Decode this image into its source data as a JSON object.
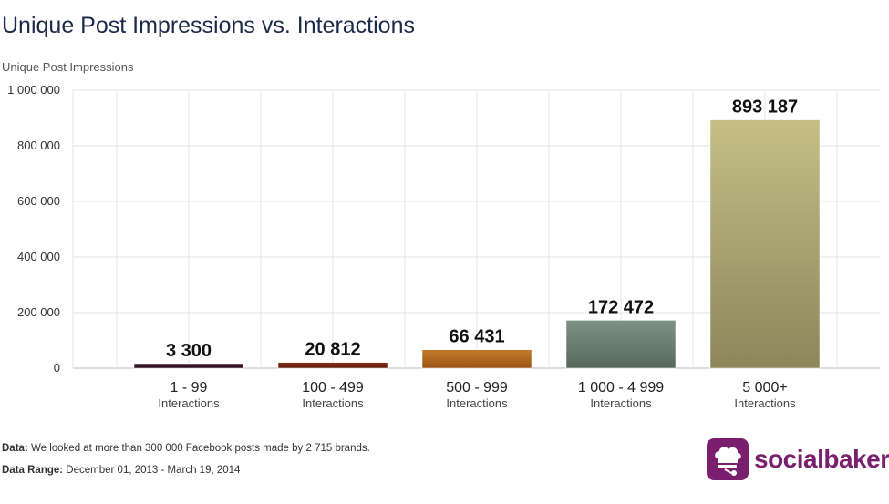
{
  "title": "Unique Post Impressions vs. Interactions",
  "ylabel": "Unique Post Impressions",
  "footer": {
    "data_label": "Data:",
    "data_text": " We looked at more than 300 000 Facebook posts made by 2 715 brands.",
    "range_label": "Data Range:",
    "range_text": " December 01, 2013 - March 19, 2014"
  },
  "logo": {
    "text": "socialbakers",
    "color": "#7a1f6e"
  },
  "chart_data": {
    "type": "bar",
    "title": "Unique Post Impressions vs. Interactions",
    "ylabel": "Unique Post Impressions",
    "xlabel": "",
    "ylim": [
      0,
      1000000
    ],
    "yticks": [
      "0",
      "200 000",
      "400 000",
      "600 000",
      "800 000",
      "1 000 000"
    ],
    "ytick_values": [
      0,
      200000,
      400000,
      600000,
      800000,
      1000000
    ],
    "grid": true,
    "categories": [
      "1 - 99",
      "100 - 499",
      "500 - 999",
      "1 000 - 4 999",
      "5 000+"
    ],
    "category_sublabel": "Interactions",
    "values": [
      3300,
      20812,
      66431,
      172472,
      893187
    ],
    "value_labels": [
      "3 300",
      "20 812",
      "66 431",
      "172 472",
      "893 187"
    ],
    "colors": [
      [
        "#4a1a33",
        "#2a0f1f"
      ],
      [
        "#8a2e17",
        "#5e1b0c"
      ],
      [
        "#c47a2c",
        "#9a5518"
      ],
      [
        "#7e9384",
        "#56685c"
      ],
      [
        "#c5be86",
        "#8c865b"
      ]
    ]
  }
}
